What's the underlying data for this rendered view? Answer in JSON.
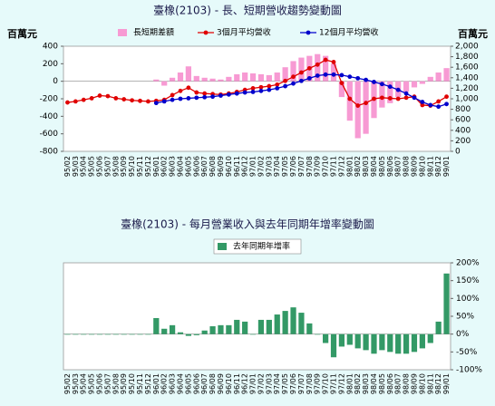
{
  "chart_data": [
    {
      "type": "bar",
      "title": "臺橡(2103) - 長、短期營收趨勢變動圖",
      "ylabel": "百萬元",
      "y2label": "百萬元",
      "categories": [
        "95/02",
        "95/03",
        "95/04",
        "95/05",
        "95/06",
        "95/07",
        "95/08",
        "95/09",
        "95/10",
        "95/11",
        "95/12",
        "96/01",
        "96/02",
        "96/03",
        "96/04",
        "96/05",
        "96/06",
        "96/07",
        "96/08",
        "96/09",
        "96/10",
        "96/11",
        "96/12",
        "97/01",
        "97/02",
        "97/03",
        "97/04",
        "97/05",
        "97/06",
        "97/07",
        "97/08",
        "97/09",
        "97/10",
        "97/11",
        "97/12",
        "98/01",
        "98/02",
        "98/03",
        "98/04",
        "98/05",
        "98/06",
        "98/07",
        "98/08",
        "98/09",
        "98/10",
        "98/11",
        "98/12",
        "99/01"
      ],
      "ylim": [
        -800,
        400
      ],
      "yticks": [
        400,
        200,
        0,
        -200,
        -400,
        -600,
        -800
      ],
      "y2lim": [
        0,
        2000
      ],
      "y2ticks": [
        {
          "value": 2000,
          "label": "2,000"
        },
        {
          "value": 1800,
          "label": "1,800"
        },
        {
          "value": 1600,
          "label": "1,600"
        },
        {
          "value": 1400,
          "label": "1,400"
        },
        {
          "value": 1200,
          "label": "1,200"
        },
        {
          "value": 1000,
          "label": "1,000"
        },
        800,
        600,
        400,
        200,
        0
      ],
      "series": [
        {
          "name": "長短期差額",
          "type": "bar",
          "color": "#f79ad3",
          "values": [
            null,
            null,
            null,
            null,
            null,
            null,
            null,
            null,
            null,
            null,
            null,
            20,
            -50,
            40,
            100,
            170,
            60,
            40,
            30,
            20,
            50,
            80,
            100,
            90,
            80,
            70,
            100,
            160,
            230,
            270,
            290,
            310,
            290,
            200,
            -180,
            -450,
            -650,
            -600,
            -420,
            -300,
            -250,
            -180,
            -120,
            -70,
            -30,
            50,
            100,
            150
          ]
        },
        {
          "name": "3個月平均營收",
          "type": "line",
          "axis": "y2",
          "color": "#e00000",
          "values": [
            930,
            950,
            980,
            1010,
            1060,
            1050,
            1010,
            990,
            970,
            960,
            950,
            960,
            980,
            1070,
            1150,
            1210,
            1120,
            1100,
            1090,
            1080,
            1100,
            1130,
            1170,
            1200,
            1220,
            1240,
            1270,
            1340,
            1420,
            1500,
            1580,
            1650,
            1740,
            1700,
            1300,
            1000,
            870,
            920,
            1000,
            1020,
            1010,
            1000,
            1020,
            1040,
            880,
            870,
            950,
            1040
          ]
        },
        {
          "name": "12個月平均營收",
          "type": "line",
          "axis": "y2",
          "color": "#0000cc",
          "values": [
            null,
            null,
            null,
            null,
            null,
            null,
            null,
            null,
            null,
            null,
            null,
            920,
            950,
            980,
            1000,
            1010,
            1020,
            1030,
            1040,
            1060,
            1080,
            1100,
            1120,
            1130,
            1150,
            1170,
            1200,
            1240,
            1290,
            1340,
            1390,
            1440,
            1460,
            1460,
            1450,
            1420,
            1390,
            1360,
            1320,
            1280,
            1230,
            1170,
            1100,
            1020,
            940,
            880,
            850,
            900
          ]
        }
      ]
    },
    {
      "type": "bar",
      "title": "臺橡(2103) - 每月營業收入與去年同期年增率變動圖",
      "yaxis_side": "right",
      "categories": [
        "95/02",
        "95/03",
        "95/04",
        "95/05",
        "95/06",
        "95/07",
        "95/08",
        "95/09",
        "95/10",
        "95/11",
        "95/12",
        "96/01",
        "96/02",
        "96/03",
        "96/04",
        "96/05",
        "96/06",
        "96/07",
        "96/08",
        "96/09",
        "96/10",
        "96/11",
        "96/12",
        "97/01",
        "97/02",
        "97/03",
        "97/04",
        "97/05",
        "97/06",
        "97/07",
        "97/08",
        "97/09",
        "97/10",
        "97/11",
        "97/12",
        "98/01",
        "98/02",
        "98/03",
        "98/04",
        "98/05",
        "98/06",
        "98/07",
        "98/08",
        "98/09",
        "98/10",
        "98/11",
        "98/12",
        "99/01"
      ],
      "ylim": [
        -100,
        200
      ],
      "yticks": [
        {
          "value": 200,
          "label": "200%"
        },
        {
          "value": 150,
          "label": "150%"
        },
        {
          "value": 100,
          "label": "100%"
        },
        {
          "value": 50,
          "label": "50%"
        },
        {
          "value": 0,
          "label": "0%"
        },
        {
          "value": -50,
          "label": "-50%"
        },
        {
          "value": -100,
          "label": "-100%"
        }
      ],
      "series": [
        {
          "name": "去年同期年增率",
          "type": "bar",
          "color": "#339966",
          "values": [
            0,
            0,
            0,
            0,
            0,
            0,
            0,
            0,
            0,
            0,
            0,
            45,
            15,
            25,
            5,
            -5,
            -3,
            10,
            22,
            25,
            25,
            40,
            35,
            0,
            40,
            40,
            55,
            65,
            75,
            60,
            30,
            0,
            -25,
            -65,
            -35,
            -30,
            -40,
            -45,
            -55,
            -45,
            -50,
            -55,
            -55,
            -50,
            -40,
            -25,
            35,
            170
          ]
        }
      ]
    }
  ]
}
